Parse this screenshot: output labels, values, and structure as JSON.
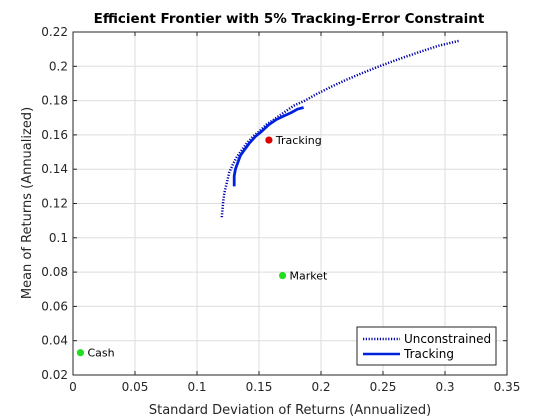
{
  "chart_data": {
    "type": "line",
    "title": "Efficient Frontier with 5% Tracking-Error Constraint",
    "xlabel": "Standard Deviation of Returns (Annualized)",
    "ylabel": "Mean of Returns (Annualized)",
    "xlim": [
      0,
      0.35
    ],
    "ylim": [
      0.02,
      0.22
    ],
    "xticks": [
      0,
      0.05,
      0.1,
      0.15,
      0.2,
      0.25,
      0.3,
      0.35
    ],
    "yticks": [
      0.02,
      0.04,
      0.06,
      0.08,
      0.1,
      0.12,
      0.14,
      0.16,
      0.18,
      0.2,
      0.22
    ],
    "xtick_labels": [
      "0",
      "0.05",
      "0.1",
      "0.15",
      "0.2",
      "0.25",
      "0.3",
      "0.35"
    ],
    "ytick_labels": [
      "0.02",
      "0.04",
      "0.06",
      "0.08",
      "0.1",
      "0.12",
      "0.14",
      "0.16",
      "0.18",
      "0.2",
      "0.22"
    ],
    "grid": true,
    "legend_position": "bottom-right",
    "series": [
      {
        "name": "Unconstrained",
        "style": "dotted",
        "color": "#0000aa",
        "x": [
          0.12,
          0.121,
          0.122,
          0.124,
          0.126,
          0.129,
          0.132,
          0.136,
          0.14,
          0.145,
          0.15,
          0.156,
          0.162,
          0.17,
          0.178,
          0.187,
          0.197,
          0.208,
          0.22,
          0.233,
          0.247,
          0.262,
          0.278,
          0.295,
          0.312
        ],
        "y": [
          0.112,
          0.12,
          0.126,
          0.132,
          0.138,
          0.143,
          0.147,
          0.151,
          0.155,
          0.159,
          0.162,
          0.166,
          0.169,
          0.173,
          0.177,
          0.18,
          0.184,
          0.188,
          0.192,
          0.196,
          0.2,
          0.204,
          0.208,
          0.212,
          0.215
        ]
      },
      {
        "name": "Tracking",
        "style": "solid",
        "color": "#0022dd",
        "x": [
          0.13,
          0.13,
          0.131,
          0.133,
          0.135,
          0.138,
          0.142,
          0.147,
          0.152,
          0.158,
          0.164,
          0.17,
          0.176,
          0.181,
          0.186
        ],
        "y": [
          0.13,
          0.136,
          0.14,
          0.144,
          0.148,
          0.151,
          0.155,
          0.159,
          0.162,
          0.166,
          0.169,
          0.171,
          0.173,
          0.175,
          0.176
        ]
      }
    ],
    "points": [
      {
        "label": "Tracking",
        "x": 0.158,
        "y": 0.157,
        "color": "#dd0000"
      },
      {
        "label": "Market",
        "x": 0.169,
        "y": 0.078,
        "color": "#22dd22"
      },
      {
        "label": "Cash",
        "x": 0.006,
        "y": 0.033,
        "color": "#22dd22"
      }
    ]
  }
}
